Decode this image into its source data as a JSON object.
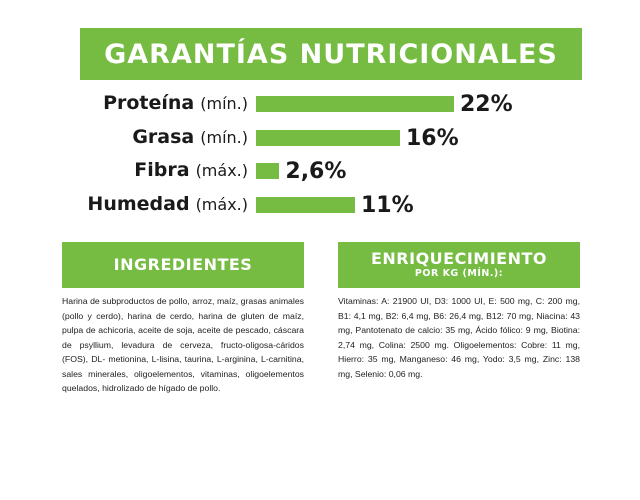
{
  "title": "GARANTÍAS NUTRICIONALES",
  "chart_data": {
    "type": "bar",
    "title": "GARANTÍAS NUTRICIONALES",
    "categories": [
      "Proteína",
      "Grasa",
      "Fibra",
      "Humedad"
    ],
    "qualifiers": [
      "(mín.)",
      "(mín.)",
      "(máx.)",
      "(máx.)"
    ],
    "values": [
      22,
      16,
      2.6,
      11
    ],
    "labels": [
      "22%",
      "16%",
      "2,6%",
      "11%"
    ],
    "unit": "%",
    "color": "#76bc43",
    "xlim": [
      0,
      22
    ],
    "grid": false
  },
  "panels": {
    "ingredients": {
      "heading": "INGREDIENTES",
      "text": "Harina de subproductos de pollo, arroz, maíz, grasas animales (pollo y cerdo), harina de cerdo, harina de gluten de maíz, pulpa de achicoria, aceite de soja, aceite de pescado, cáscara de psyllium, levadura de cerveza, fructo-oligosa-cáridos (FOS), DL- metionina, L-lisina, taurina, L-arginina, L-carnitina, sales minerales, oligoelementos, vitaminas, oligoelementos quelados, hidrolizado de hígado de pollo."
    },
    "enrichment": {
      "heading": "ENRIQUECIMIENTO",
      "subheading": "POR KG (MÍN.):",
      "text": "Vitaminas: A: 21900 UI, D3: 1000 UI, E: 500 mg, C: 200 mg, B1: 4,1 mg, B2: 6,4 mg, B6: 26,4 mg, B12: 70 mg, Niacina: 43 mg, Pantotenato de calcio: 35 mg, Ácido fólico: 9 mg, Biotina: 2,74 mg, Colina: 2500 mg. Oligoelementos: Cobre: 11 mg, Hierro: 35 mg, Manganeso: 46 mg, Yodo: 3,5 mg, Zinc: 138 mg, Selenio: 0,06 mg."
    }
  },
  "colors": {
    "accent": "#76bc43",
    "text": "#1a1a1a"
  }
}
